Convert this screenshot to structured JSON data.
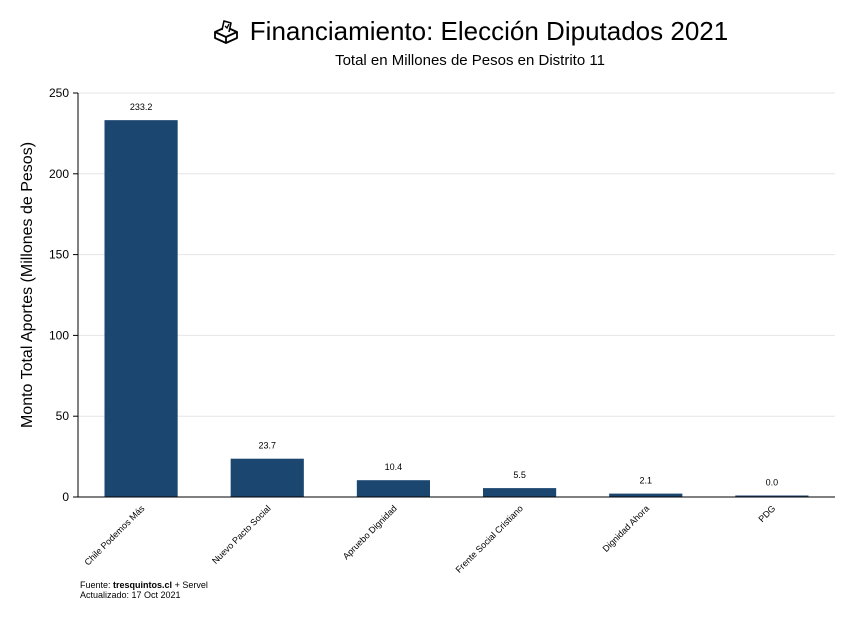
{
  "header": {
    "title": "Financiamiento: Elección Diputados 2021",
    "subtitle": "Total en Millones de Pesos en Distrito 11",
    "icon": "ballot-box-icon"
  },
  "footer": {
    "source_label": "Fuente:",
    "source_site": "tresquintos.cl",
    "source_rest": "+ Servel",
    "updated": "Actualizado: 17 Oct 2021"
  },
  "chart_data": {
    "type": "bar",
    "title": "Financiamiento: Elección Diputados 2021",
    "subtitle": "Total en Millones de Pesos en Distrito 11",
    "xlabel": "",
    "ylabel": "Monto Total Aportes (Millones de Pesos)",
    "categories": [
      "Chile Podemos Más",
      "Nuevo Pacto Social",
      "Apruebo Dignidad",
      "Frente Social Cristiano",
      "Dignidad Ahora",
      "PDG"
    ],
    "values": [
      233.2,
      23.7,
      10.4,
      5.5,
      2.1,
      0.0
    ],
    "data_labels": [
      "233.2",
      "23.7",
      "10.4",
      "5.5",
      "2.1",
      "0.0"
    ],
    "yticks": [
      0,
      50,
      100,
      150,
      200,
      250
    ],
    "ylim": [
      0,
      250
    ],
    "grid": true,
    "bar_color": "#1b4670"
  }
}
